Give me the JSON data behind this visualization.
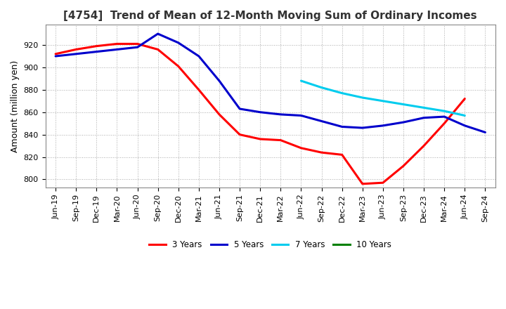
{
  "title": "[4754]  Trend of Mean of 12-Month Moving Sum of Ordinary Incomes",
  "ylabel": "Amount (million yen)",
  "ylim": [
    793,
    938
  ],
  "yticks": [
    800,
    820,
    840,
    860,
    880,
    900,
    920
  ],
  "background_color": "#ffffff",
  "grid_color": "#aaaaaa",
  "xtick_labels": [
    "Jun-19",
    "Sep-19",
    "Dec-19",
    "Mar-20",
    "Jun-20",
    "Sep-20",
    "Dec-20",
    "Mar-21",
    "Jun-21",
    "Sep-21",
    "Dec-21",
    "Mar-22",
    "Jun-22",
    "Sep-22",
    "Dec-22",
    "Mar-23",
    "Jun-23",
    "Sep-23",
    "Dec-23",
    "Mar-24",
    "Jun-24",
    "Sep-24"
  ],
  "series": [
    {
      "label": "3 Years",
      "color": "#ff0000",
      "y": [
        912,
        916,
        919,
        921,
        921,
        916,
        901,
        880,
        858,
        840,
        836,
        835,
        828,
        824,
        822,
        796,
        797,
        812,
        830,
        850,
        872,
        null
      ]
    },
    {
      "label": "5 Years",
      "color": "#0000cc",
      "y": [
        910,
        912,
        914,
        916,
        918,
        930,
        922,
        910,
        888,
        863,
        860,
        858,
        857,
        852,
        847,
        846,
        848,
        851,
        855,
        856,
        848,
        842
      ]
    },
    {
      "label": "7 Years",
      "color": "#00ccee",
      "y": [
        null,
        null,
        null,
        null,
        null,
        null,
        null,
        null,
        null,
        null,
        null,
        null,
        888,
        882,
        877,
        873,
        870,
        867,
        864,
        861,
        857,
        null
      ]
    },
    {
      "label": "10 Years",
      "color": "#008000",
      "y": [
        null,
        null,
        null,
        null,
        null,
        null,
        null,
        null,
        null,
        null,
        null,
        null,
        null,
        null,
        null,
        null,
        null,
        null,
        null,
        null,
        null,
        null
      ]
    }
  ],
  "title_fontsize": 11,
  "tick_fontsize": 8,
  "label_fontsize": 9,
  "line_width": 2.2
}
